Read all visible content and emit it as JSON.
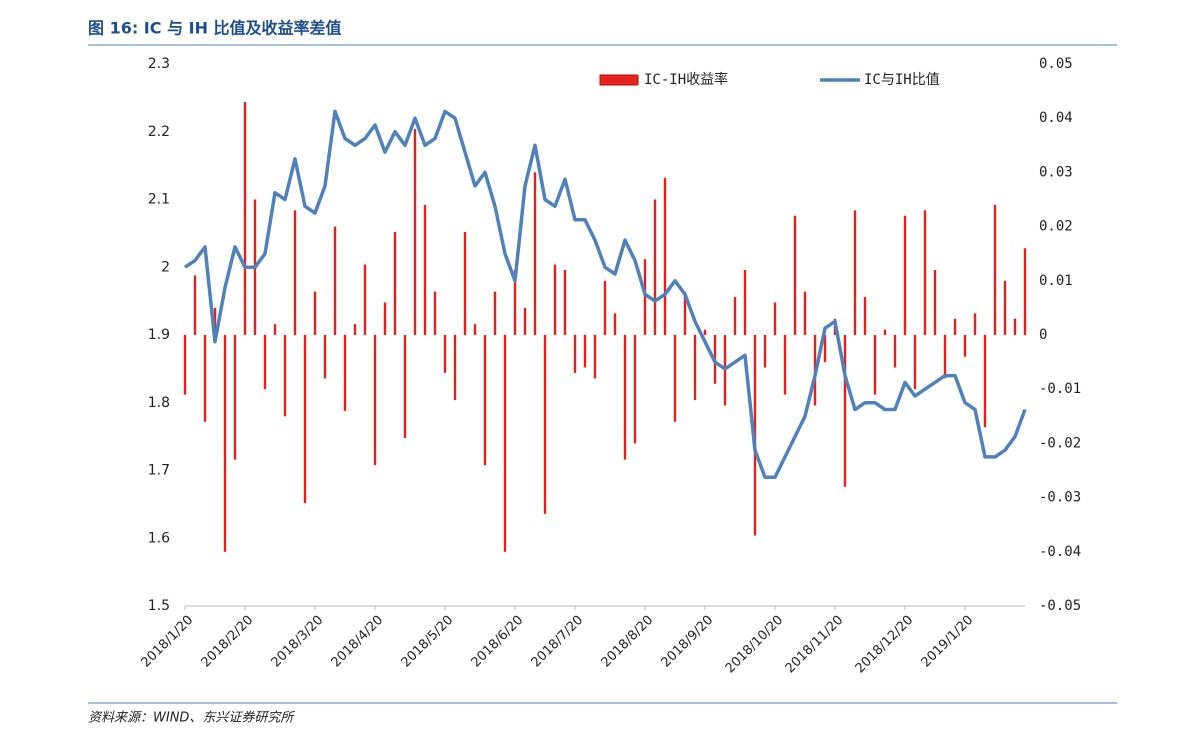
{
  "chart_data": {
    "type": "bar-line",
    "title": "图 16: IC 与 IH 比值及收益率差值",
    "source": "资料来源：WIND、东兴证券研究所",
    "categories": [
      "2018/1/20",
      null,
      null,
      null,
      null,
      null,
      "2018/2/20",
      null,
      null,
      null,
      null,
      null,
      null,
      "2018/3/20",
      null,
      null,
      null,
      null,
      null,
      "2018/4/20",
      null,
      null,
      null,
      null,
      null,
      null,
      "2018/5/20",
      null,
      null,
      null,
      null,
      null,
      null,
      "2018/6/20",
      null,
      null,
      null,
      null,
      null,
      "2018/7/20",
      null,
      null,
      null,
      null,
      null,
      null,
      "2018/8/20",
      null,
      null,
      null,
      null,
      null,
      "2018/9/20",
      null,
      null,
      null,
      null,
      null,
      null,
      "2018/10/20",
      null,
      null,
      null,
      null,
      null,
      "2018/11/20",
      null,
      null,
      null,
      null,
      null,
      null,
      "2018/12/20",
      null,
      null,
      null,
      null,
      null,
      "2019/1/20",
      null,
      null,
      null,
      null,
      null,
      null
    ],
    "series": [
      {
        "name": "IC-IH收益率",
        "color": "#e8201c",
        "axis": "y2",
        "kind": "bar",
        "values": [
          -0.011,
          0.011,
          -0.016,
          0.005,
          -0.04,
          -0.023,
          0.043,
          0.025,
          -0.01,
          0.002,
          -0.015,
          0.023,
          -0.031,
          0.008,
          -0.008,
          0.02,
          -0.014,
          0.002,
          0.013,
          -0.024,
          0.006,
          0.019,
          -0.019,
          0.038,
          0.024,
          0.008,
          -0.007,
          -0.012,
          0.019,
          0.002,
          -0.024,
          0.008,
          -0.04,
          0.012,
          0.005,
          0.03,
          -0.033,
          0.013,
          0.012,
          -0.007,
          -0.006,
          -0.008,
          0.01,
          0.004,
          -0.023,
          -0.02,
          0.014,
          0.025,
          0.029,
          -0.016,
          0.008,
          -0.012,
          0.001,
          -0.009,
          -0.013,
          0.007,
          0.012,
          -0.037,
          -0.006,
          0.006,
          -0.011,
          0.022,
          0.008,
          -0.013,
          -0.005,
          0.003,
          -0.028,
          0.023,
          0.007,
          -0.011,
          0.001,
          -0.006,
          0.022,
          -0.01,
          0.023,
          0.012,
          -0.008,
          0.003,
          -0.004,
          0.004,
          -0.017,
          0.024,
          0.01,
          0.003,
          0.016
        ]
      },
      {
        "name": "IC与IH比值",
        "color": "#4f81bd",
        "axis": "y",
        "kind": "line",
        "values": [
          2.0,
          2.01,
          2.03,
          1.89,
          1.97,
          2.03,
          2.0,
          2.0,
          2.02,
          2.11,
          2.1,
          2.16,
          2.09,
          2.08,
          2.12,
          2.23,
          2.19,
          2.18,
          2.19,
          2.21,
          2.17,
          2.2,
          2.18,
          2.22,
          2.18,
          2.19,
          2.23,
          2.22,
          2.17,
          2.12,
          2.14,
          2.09,
          2.02,
          1.98,
          2.12,
          2.18,
          2.1,
          2.09,
          2.13,
          2.07,
          2.07,
          2.04,
          2.0,
          1.99,
          2.04,
          2.01,
          1.96,
          1.95,
          1.96,
          1.98,
          1.96,
          1.92,
          1.89,
          1.86,
          1.85,
          1.86,
          1.87,
          1.73,
          1.69,
          1.69,
          1.72,
          1.75,
          1.78,
          1.84,
          1.91,
          1.92,
          1.84,
          1.79,
          1.8,
          1.8,
          1.79,
          1.79,
          1.83,
          1.81,
          1.82,
          1.83,
          1.84,
          1.84,
          1.8,
          1.79,
          1.72,
          1.72,
          1.73,
          1.75,
          1.79
        ]
      }
    ],
    "ylim": [
      1.5,
      2.3
    ],
    "yticks": [
      1.5,
      1.6,
      1.7,
      1.8,
      1.9,
      2,
      2.1,
      2.2,
      2.3
    ],
    "y2lim": [
      -0.05,
      0.05
    ],
    "y2ticks": [
      -0.05,
      -0.04,
      -0.03,
      -0.02,
      -0.01,
      0,
      0.01,
      0.02,
      0.03,
      0.04,
      0.05
    ],
    "grid": false,
    "legend": "top"
  }
}
